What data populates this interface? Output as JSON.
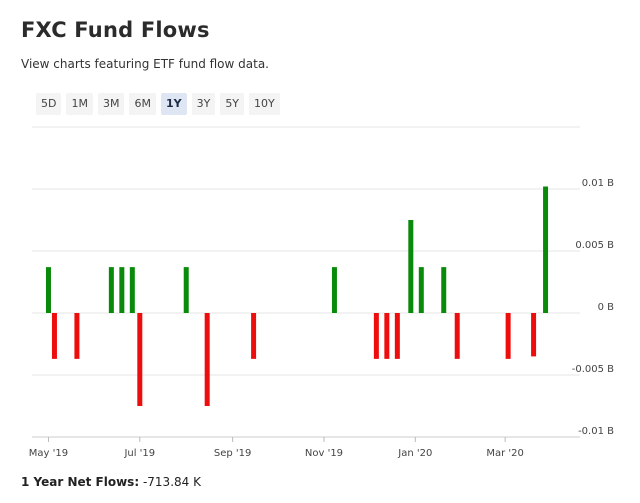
{
  "header": {
    "title": "FXC Fund Flows",
    "subtitle": "View charts featuring ETF fund flow data."
  },
  "range_buttons": [
    {
      "label": "5D",
      "active": false
    },
    {
      "label": "1M",
      "active": false
    },
    {
      "label": "3M",
      "active": false
    },
    {
      "label": "6M",
      "active": false
    },
    {
      "label": "1Y",
      "active": true
    },
    {
      "label": "3Y",
      "active": false
    },
    {
      "label": "5Y",
      "active": false
    },
    {
      "label": "10Y",
      "active": false
    }
  ],
  "footer": {
    "label": "1 Year Net Flows:",
    "value": "-713.84 K"
  },
  "colors": {
    "positive": "#0a8a0a",
    "negative": "#ee0d0d",
    "grid": "#e6e6e6",
    "text": "#333333"
  },
  "chart_data": {
    "type": "bar",
    "title": "",
    "xlabel": "",
    "ylabel": "",
    "unit": "B",
    "ylim": [
      -0.01,
      0.01
    ],
    "yticks": [
      {
        "value": 0.01,
        "label": "0.01 B"
      },
      {
        "value": 0.005,
        "label": "0.005 B"
      },
      {
        "value": 0,
        "label": "0 B"
      },
      {
        "value": -0.005,
        "label": "-0.005 B"
      },
      {
        "value": -0.01,
        "label": "-0.01 B"
      }
    ],
    "xdomain": [
      "2019-04-20",
      "2020-04-20"
    ],
    "xticks": [
      {
        "date": "2019-05-01",
        "label": "May '19"
      },
      {
        "date": "2019-07-01",
        "label": "Jul '19"
      },
      {
        "date": "2019-09-01",
        "label": "Sep '19"
      },
      {
        "date": "2019-11-01",
        "label": "Nov '19"
      },
      {
        "date": "2020-01-01",
        "label": "Jan '20"
      },
      {
        "date": "2020-03-01",
        "label": "Mar '20"
      }
    ],
    "grid": true,
    "legend": "none",
    "points": [
      {
        "date": "2019-05-01",
        "value": 0.0037
      },
      {
        "date": "2019-05-05",
        "value": -0.0037
      },
      {
        "date": "2019-05-20",
        "value": -0.0037
      },
      {
        "date": "2019-06-12",
        "value": 0.0037
      },
      {
        "date": "2019-06-19",
        "value": 0.0037
      },
      {
        "date": "2019-06-26",
        "value": 0.0037
      },
      {
        "date": "2019-07-01",
        "value": -0.0075
      },
      {
        "date": "2019-08-01",
        "value": 0.0037
      },
      {
        "date": "2019-08-15",
        "value": -0.0075
      },
      {
        "date": "2019-09-15",
        "value": -0.0037
      },
      {
        "date": "2019-11-08",
        "value": 0.0037
      },
      {
        "date": "2019-12-06",
        "value": -0.0037
      },
      {
        "date": "2019-12-13",
        "value": -0.0037
      },
      {
        "date": "2019-12-20",
        "value": -0.0037
      },
      {
        "date": "2019-12-29",
        "value": 0.0075
      },
      {
        "date": "2020-01-05",
        "value": 0.0037
      },
      {
        "date": "2020-01-20",
        "value": 0.0037
      },
      {
        "date": "2020-01-29",
        "value": -0.0037
      },
      {
        "date": "2020-03-03",
        "value": -0.0037
      },
      {
        "date": "2020-03-20",
        "value": -0.0035
      },
      {
        "date": "2020-03-28",
        "value": 0.0102
      }
    ]
  }
}
